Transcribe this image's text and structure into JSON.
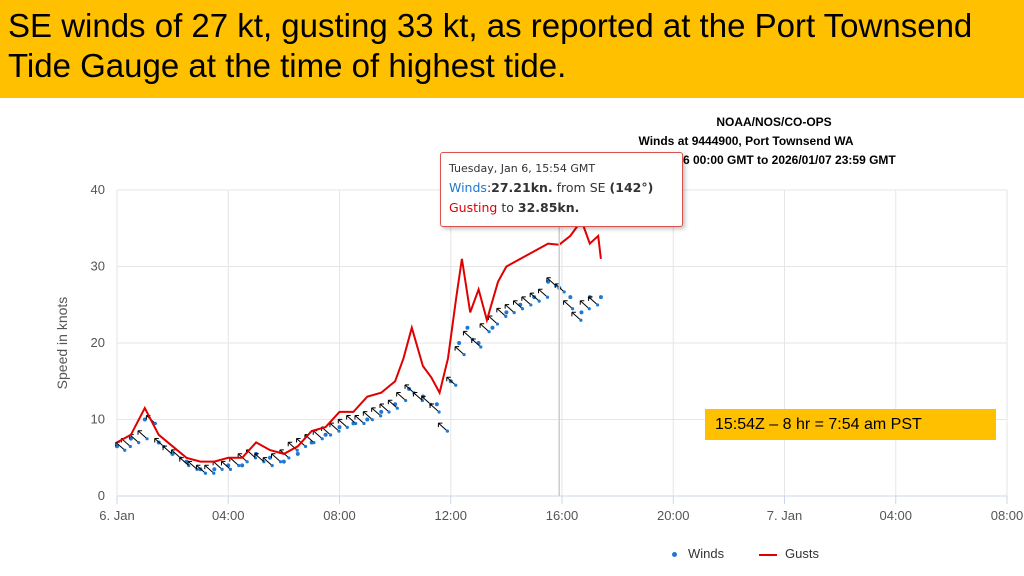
{
  "banner": {
    "text": "SE winds of 27 kt, gusting 33 kt, as reported at the Port Townsend Tide Gauge at the time of highest tide."
  },
  "note": "15:54Z – 8 hr = 7:54 am PST",
  "tooltip": {
    "date": "Tuesday, Jan 6, 15:54 GMT",
    "winds_label": "Winds",
    "winds_value": "27.21kn.",
    "winds_from": "from SE",
    "winds_dir": "(142°)",
    "gust_label": "Gusting",
    "gust_to": "to",
    "gust_value": "32.85kn."
  },
  "colors": {
    "banner": "#FFC000",
    "winds": "#1f78d1",
    "gusts": "#e00000",
    "arrows": "#000000"
  },
  "chart_data": {
    "type": "line",
    "title": "NOAA/NOS/CO-OPS",
    "subtitle": "Winds at 9444900, Port Townsend WA",
    "subtitle2": "From 2026/01/06 00:00 GMT to 2026/01/07 23:59 GMT",
    "xlabel": "",
    "ylabel": "Speed in knots",
    "xlim": [
      0,
      32
    ],
    "ylim": [
      0,
      40
    ],
    "grid": true,
    "legend": "bottom-right",
    "y_ticks": [
      "0",
      "10",
      "20",
      "30",
      "40"
    ],
    "x_ticks": [
      {
        "t": 0,
        "label": "6. Jan"
      },
      {
        "t": 4,
        "label": "04:00"
      },
      {
        "t": 8,
        "label": "08:00"
      },
      {
        "t": 12,
        "label": "12:00"
      },
      {
        "t": 16,
        "label": "16:00"
      },
      {
        "t": 20,
        "label": "20:00"
      },
      {
        "t": 24,
        "label": "7. Jan"
      },
      {
        "t": 28,
        "label": "04:00"
      },
      {
        "t": 32,
        "label": "08:00"
      }
    ],
    "crosshair_t": 15.9,
    "series": [
      {
        "name": "Winds",
        "x": [
          0,
          0.5,
          1,
          1.5,
          2,
          2.5,
          3,
          3.5,
          4,
          4.5,
          5,
          5.5,
          6,
          6.5,
          7,
          7.5,
          8,
          8.5,
          9,
          9.5,
          10,
          10.5,
          11,
          11.5,
          12,
          12.3,
          12.6,
          13,
          13.5,
          14,
          14.5,
          15,
          15.5,
          15.9,
          16.3,
          16.7,
          17,
          17.4
        ],
        "y": [
          6.5,
          7.5,
          10,
          7,
          5.5,
          4.5,
          3.5,
          3.5,
          4,
          4,
          5.5,
          5,
          4.5,
          5.5,
          7,
          8,
          9,
          9.5,
          10,
          11,
          12,
          14,
          13,
          12,
          15,
          20,
          22,
          20,
          22,
          24,
          25,
          26,
          28,
          27.2,
          26,
          24,
          26,
          26
        ]
      },
      {
        "name": "Gusts",
        "x": [
          0,
          0.5,
          1,
          1.5,
          2,
          2.5,
          3,
          3.5,
          4,
          4.5,
          5,
          5.5,
          6,
          6.5,
          7,
          7.5,
          8,
          8.5,
          9,
          9.5,
          10,
          10.3,
          10.6,
          11,
          11.3,
          11.6,
          11.9,
          12.2,
          12.4,
          12.7,
          13,
          13.3,
          13.7,
          14,
          14.5,
          15,
          15.5,
          15.9,
          16.3,
          16.7,
          17,
          17.3,
          17.4
        ],
        "y": [
          7,
          8,
          11.5,
          8,
          6.5,
          5,
          4.5,
          4.5,
          5,
          5,
          7,
          6,
          5.5,
          6.5,
          8.5,
          9,
          11,
          11,
          13,
          13.5,
          15,
          18,
          22,
          17,
          15.5,
          13.5,
          18,
          26,
          31,
          24,
          27,
          23,
          28,
          30,
          31,
          32,
          33,
          32.85,
          34,
          36,
          33,
          34,
          31
        ]
      }
    ],
    "arrows": {
      "name": "Wind direction",
      "x": [
        0.1,
        0.3,
        0.6,
        0.9,
        1.2,
        1.5,
        1.8,
        2.1,
        2.4,
        2.7,
        3.0,
        3.3,
        3.6,
        3.9,
        4.2,
        4.5,
        4.8,
        5.1,
        5.4,
        5.7,
        6.0,
        6.3,
        6.6,
        6.9,
        7.2,
        7.5,
        7.8,
        8.1,
        8.4,
        8.7,
        9.0,
        9.3,
        9.6,
        9.9,
        10.2,
        10.5,
        10.8,
        11.1,
        11.4,
        11.7,
        12.0,
        12.3,
        12.6,
        12.9,
        13.2,
        13.5,
        13.8,
        14.1,
        14.4,
        14.7,
        15.0,
        15.3,
        15.6,
        15.9,
        16.2,
        16.5,
        16.8,
        17.1
      ],
      "y": [
        6.5,
        7,
        7.5,
        8,
        10,
        7,
        6,
        5.5,
        4.5,
        4,
        3.5,
        3.5,
        4,
        4,
        4.5,
        5,
        5.5,
        5,
        4.5,
        5,
        5.5,
        6.5,
        7,
        7.5,
        8,
        8.5,
        9,
        9.5,
        10,
        10,
        10.5,
        11,
        11.5,
        12,
        13,
        14,
        13,
        12.5,
        11.5,
        9,
        15,
        19,
        21,
        20,
        22,
        23,
        24,
        24.5,
        25,
        25.5,
        26,
        26.5,
        28,
        27.2,
        25,
        23.5,
        25,
        25.5
      ]
    }
  },
  "legend": {
    "winds": "Winds",
    "gusts": "Gusts"
  }
}
